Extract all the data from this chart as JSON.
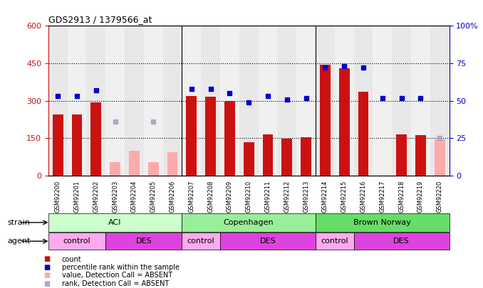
{
  "title": "GDS2913 / 1379566_at",
  "samples": [
    "GSM92200",
    "GSM92201",
    "GSM92202",
    "GSM92203",
    "GSM92204",
    "GSM92205",
    "GSM92206",
    "GSM92207",
    "GSM92208",
    "GSM92209",
    "GSM92210",
    "GSM92211",
    "GSM92212",
    "GSM92213",
    "GSM92214",
    "GSM92215",
    "GSM92216",
    "GSM92217",
    "GSM92218",
    "GSM92219",
    "GSM92220"
  ],
  "counts": [
    245,
    245,
    295,
    null,
    null,
    null,
    null,
    320,
    315,
    300,
    135,
    165,
    147,
    155,
    445,
    430,
    335,
    null,
    165,
    162,
    null
  ],
  "counts_absent": [
    null,
    null,
    null,
    55,
    100,
    55,
    95,
    null,
    null,
    null,
    null,
    null,
    null,
    null,
    null,
    null,
    null,
    null,
    null,
    null,
    145
  ],
  "blue_ranks": [
    53,
    53,
    57,
    null,
    null,
    null,
    null,
    58,
    58,
    55,
    49,
    53,
    51,
    52,
    72,
    73,
    72,
    52,
    52,
    52,
    null
  ],
  "blue_ranks_absent": [
    null,
    null,
    null,
    36,
    null,
    36,
    null,
    null,
    null,
    null,
    null,
    null,
    null,
    null,
    null,
    null,
    null,
    null,
    null,
    null,
    25
  ],
  "ylim_left": [
    0,
    600
  ],
  "ylim_right": [
    0,
    100
  ],
  "yticks_left": [
    0,
    150,
    300,
    450,
    600
  ],
  "yticks_right": [
    0,
    25,
    50,
    75,
    100
  ],
  "bar_color": "#cc1111",
  "bar_absent_color": "#ffaaaa",
  "dot_color": "#0000cc",
  "dot_absent_color": "#aaaacc",
  "strain_groups": [
    {
      "label": "ACI",
      "start": 0,
      "end": 6,
      "color": "#ccffcc"
    },
    {
      "label": "Copenhagen",
      "start": 7,
      "end": 13,
      "color": "#99ee99"
    },
    {
      "label": "Brown Norway",
      "start": 14,
      "end": 20,
      "color": "#66dd66"
    }
  ],
  "agent_groups": [
    {
      "label": "control",
      "start": 0,
      "end": 2,
      "color": "#ffaaee"
    },
    {
      "label": "DES",
      "start": 3,
      "end": 6,
      "color": "#dd44dd"
    },
    {
      "label": "control",
      "start": 7,
      "end": 8,
      "color": "#ffaaee"
    },
    {
      "label": "DES",
      "start": 9,
      "end": 13,
      "color": "#dd44dd"
    },
    {
      "label": "control",
      "start": 14,
      "end": 15,
      "color": "#ffaaee"
    },
    {
      "label": "DES",
      "start": 16,
      "end": 20,
      "color": "#dd44dd"
    }
  ]
}
